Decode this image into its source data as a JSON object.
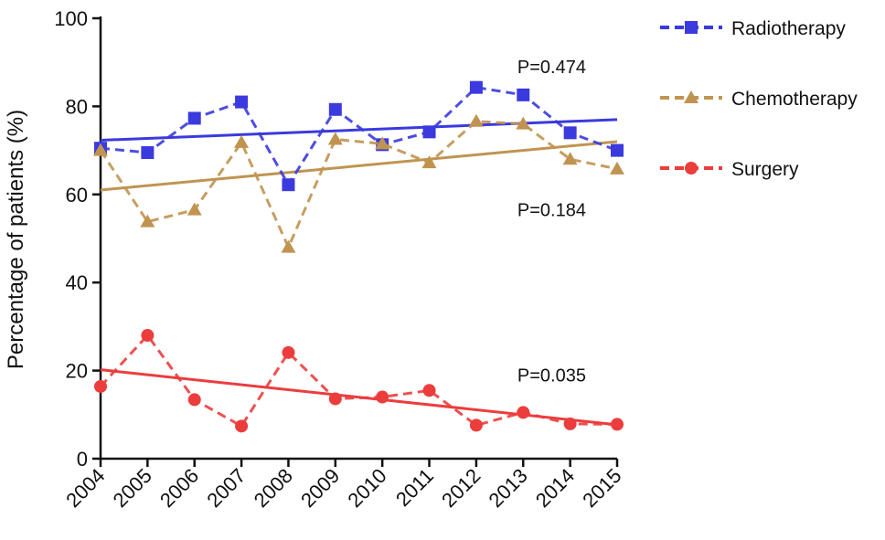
{
  "chart_data": {
    "type": "line",
    "ylabel": "Percentage of patients (%)",
    "xlabel": "",
    "x": [
      "2004",
      "2005",
      "2006",
      "2007",
      "2008",
      "2009",
      "2010",
      "2011",
      "2012",
      "2013",
      "2014",
      "2015"
    ],
    "ylim": [
      0,
      100
    ],
    "yticks": [
      0,
      20,
      40,
      60,
      80,
      100
    ],
    "grid": false,
    "legend": "right",
    "series": [
      {
        "name": "Radiotherapy",
        "color": "#3a3adf",
        "marker": "square",
        "values": [
          70.5,
          69.5,
          77.3,
          81,
          62.2,
          79.3,
          71.3,
          74.2,
          84.3,
          82.6,
          74,
          70
        ],
        "trend": [
          72.3,
          77
        ]
      },
      {
        "name": "Chemotherapy",
        "color": "#c09450",
        "marker": "triangle",
        "values": [
          70,
          53.8,
          56.5,
          71.8,
          48,
          72.5,
          71.5,
          67.2,
          76.6,
          76,
          68,
          65.8
        ],
        "trend": [
          61,
          72
        ]
      },
      {
        "name": "Surgery",
        "color": "#ec3d3d",
        "marker": "circle",
        "values": [
          16.4,
          28,
          13.4,
          7.4,
          24.1,
          13.6,
          14,
          15.5,
          7.6,
          10.5,
          7.9,
          7.8
        ],
        "trend": [
          20.2,
          7.7
        ]
      }
    ],
    "annotations": [
      {
        "text": "P=0.474",
        "x": "2012",
        "y": 89
      },
      {
        "text": "P=0.184",
        "x": "2012",
        "y": 56.5
      },
      {
        "text": "P=0.035",
        "x": "2012",
        "y": 19
      }
    ]
  }
}
